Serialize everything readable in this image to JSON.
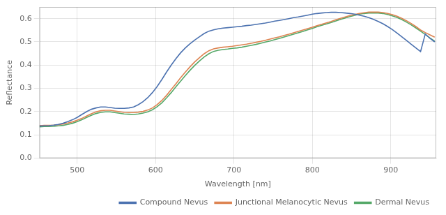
{
  "chart_data": {
    "type": "line",
    "xlabel": "Wavelength [nm]",
    "ylabel": "Reflectance",
    "x": [
      452,
      458,
      464,
      470,
      476,
      482,
      488,
      494,
      500,
      506,
      512,
      518,
      524,
      530,
      536,
      542,
      548,
      554,
      560,
      566,
      572,
      578,
      584,
      590,
      596,
      602,
      608,
      614,
      620,
      626,
      632,
      638,
      644,
      650,
      656,
      662,
      668,
      674,
      680,
      686,
      692,
      698,
      704,
      710,
      716,
      722,
      728,
      734,
      740,
      746,
      752,
      758,
      764,
      770,
      776,
      782,
      788,
      794,
      800,
      806,
      812,
      818,
      824,
      830,
      836,
      842,
      848,
      854,
      860,
      866,
      872,
      878,
      884,
      890,
      896,
      902,
      908,
      914,
      920,
      926,
      932,
      938,
      944,
      950,
      956
    ],
    "series": [
      {
        "name": "Compound Nevus",
        "color": "#4c72b0",
        "values": [
          0.138,
          0.139,
          0.14,
          0.142,
          0.145,
          0.15,
          0.157,
          0.165,
          0.175,
          0.188,
          0.2,
          0.21,
          0.216,
          0.22,
          0.22,
          0.218,
          0.215,
          0.214,
          0.214,
          0.216,
          0.22,
          0.23,
          0.243,
          0.26,
          0.282,
          0.308,
          0.338,
          0.37,
          0.4,
          0.428,
          0.453,
          0.474,
          0.492,
          0.508,
          0.522,
          0.536,
          0.546,
          0.552,
          0.556,
          0.559,
          0.561,
          0.563,
          0.565,
          0.567,
          0.57,
          0.572,
          0.575,
          0.578,
          0.581,
          0.585,
          0.589,
          0.592,
          0.596,
          0.6,
          0.604,
          0.607,
          0.611,
          0.615,
          0.619,
          0.622,
          0.624,
          0.626,
          0.627,
          0.627,
          0.626,
          0.624,
          0.622,
          0.619,
          0.615,
          0.61,
          0.604,
          0.597,
          0.588,
          0.578,
          0.566,
          0.553,
          0.538,
          0.522,
          0.506,
          0.49,
          0.474,
          0.458,
          0.534,
          0.515,
          0.5
        ]
      },
      {
        "name": "Junctional Melanocytic Nevus",
        "color": "#dd8452",
        "values": [
          0.14,
          0.141,
          0.141,
          0.142,
          0.144,
          0.147,
          0.151,
          0.156,
          0.163,
          0.171,
          0.181,
          0.191,
          0.199,
          0.204,
          0.206,
          0.206,
          0.203,
          0.2,
          0.197,
          0.196,
          0.196,
          0.198,
          0.201,
          0.207,
          0.216,
          0.23,
          0.248,
          0.27,
          0.295,
          0.32,
          0.346,
          0.37,
          0.393,
          0.414,
          0.432,
          0.449,
          0.462,
          0.47,
          0.474,
          0.477,
          0.479,
          0.481,
          0.484,
          0.487,
          0.49,
          0.494,
          0.498,
          0.502,
          0.507,
          0.512,
          0.517,
          0.522,
          0.528,
          0.533,
          0.539,
          0.545,
          0.551,
          0.557,
          0.563,
          0.57,
          0.576,
          0.582,
          0.588,
          0.595,
          0.601,
          0.607,
          0.613,
          0.618,
          0.622,
          0.625,
          0.628,
          0.628,
          0.628,
          0.626,
          0.622,
          0.617,
          0.61,
          0.601,
          0.591,
          0.579,
          0.566,
          0.551,
          0.54,
          0.53,
          0.52
        ]
      },
      {
        "name": "Dermal Nevus",
        "color": "#55a868",
        "values": [
          0.135,
          0.136,
          0.136,
          0.137,
          0.139,
          0.141,
          0.145,
          0.15,
          0.157,
          0.165,
          0.175,
          0.184,
          0.192,
          0.197,
          0.199,
          0.199,
          0.196,
          0.193,
          0.19,
          0.189,
          0.188,
          0.19,
          0.194,
          0.199,
          0.208,
          0.221,
          0.238,
          0.259,
          0.282,
          0.307,
          0.331,
          0.355,
          0.378,
          0.399,
          0.418,
          0.435,
          0.449,
          0.459,
          0.464,
          0.467,
          0.469,
          0.472,
          0.474,
          0.477,
          0.481,
          0.485,
          0.489,
          0.494,
          0.499,
          0.504,
          0.51,
          0.515,
          0.521,
          0.527,
          0.533,
          0.539,
          0.545,
          0.552,
          0.558,
          0.565,
          0.571,
          0.577,
          0.583,
          0.59,
          0.597,
          0.603,
          0.609,
          0.614,
          0.619,
          0.622,
          0.624,
          0.625,
          0.624,
          0.622,
          0.618,
          0.612,
          0.605,
          0.596,
          0.585,
          0.573,
          0.56,
          0.546,
          0.532,
          0.517,
          0.503
        ]
      }
    ],
    "xlim": [
      452,
      958
    ],
    "ylim": [
      0.0,
      0.65
    ],
    "xticks": [
      500,
      600,
      700,
      800,
      900
    ],
    "yticks": [
      {
        "value": 0.0,
        "label": "0.0"
      },
      0.1,
      0.2,
      0.3,
      0.4,
      0.5,
      0.6
    ],
    "grid": true,
    "legend": "lower right"
  }
}
